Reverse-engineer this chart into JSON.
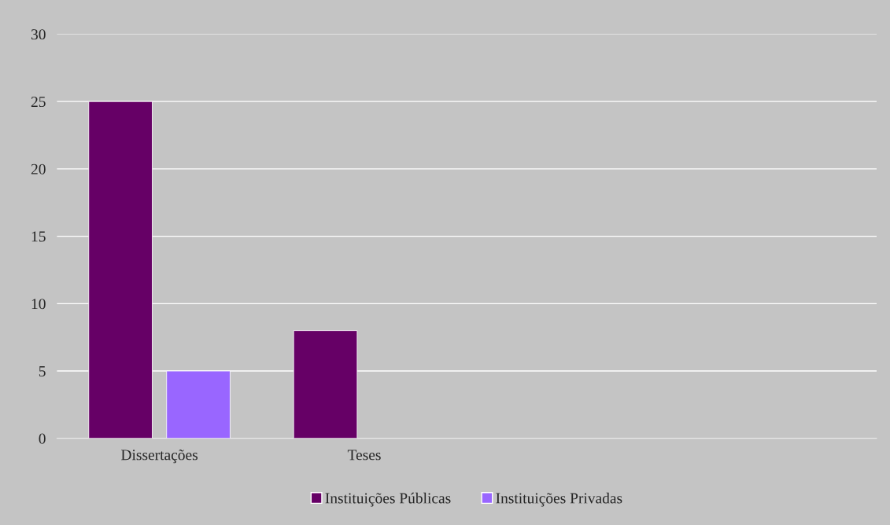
{
  "chart_data": {
    "type": "bar",
    "categories": [
      "Dissertações",
      "Teses",
      null,
      null
    ],
    "series": [
      {
        "name": "Instituições Públicas",
        "color": "#660066",
        "values": [
          25,
          8,
          null,
          null
        ]
      },
      {
        "name": "Instituições Privadas",
        "color": "#9966ff",
        "values": [
          5,
          null,
          null,
          null
        ]
      }
    ],
    "ylim": [
      0,
      30
    ],
    "yticks": [
      0,
      5,
      10,
      15,
      20,
      25,
      30
    ],
    "grid": "y",
    "legend": "bottom"
  }
}
